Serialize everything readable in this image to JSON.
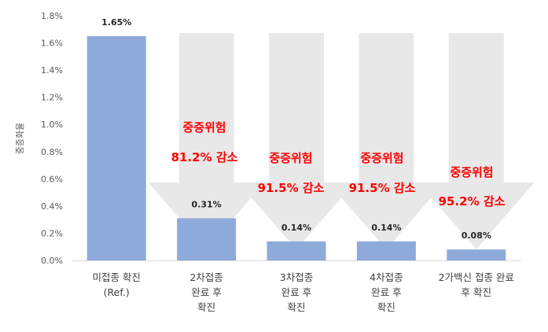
{
  "chart_data": {
    "type": "bar",
    "ylabel": "중증화율",
    "ylim": [
      0,
      1.8
    ],
    "yticks": [
      "0.0%",
      "0.2%",
      "0.4%",
      "0.6%",
      "0.8%",
      "1.0%",
      "1.2%",
      "1.4%",
      "1.6%",
      "1.8%"
    ],
    "grid": false,
    "categories": [
      [
        "미접종 확진",
        "(Ref.)"
      ],
      [
        "2차접종",
        "완료 후",
        "확진"
      ],
      [
        "3차접종",
        "완료 후",
        "확진"
      ],
      [
        "4차접종",
        "완료 후",
        "확진"
      ],
      [
        "2가백신 접종 완료",
        "후 확진"
      ]
    ],
    "values": [
      1.65,
      0.31,
      0.14,
      0.14,
      0.08
    ],
    "data_labels": [
      "1.65%",
      "0.31%",
      "0.14%",
      "0.14%",
      "0.08%"
    ],
    "colors": {
      "bar": "#8eaadb",
      "arrow": "#e8e8e8",
      "annotation": "#ff0000"
    },
    "annotations": [
      null,
      {
        "title": "중증위험",
        "value": "81.2% 감소"
      },
      {
        "title": "중증위험",
        "value": "91.5% 감소"
      },
      {
        "title": "중증위험",
        "value": "91.5% 감소"
      },
      {
        "title": "중증위험",
        "value": "95.2% 감소"
      }
    ]
  }
}
